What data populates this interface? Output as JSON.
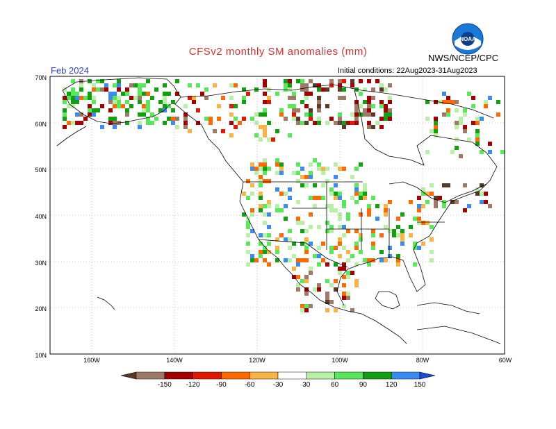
{
  "title": "CFSv2 monthly SM anomalies (mm)",
  "agency": "NWS/NCEP/CPC",
  "valid_month": "Feb 2024",
  "initial_conditions": "Initial conditions: 22Aug2023-31Aug2023",
  "logo_icon": "noaa-logo-icon",
  "lat_labels": [
    "70N",
    "60N",
    "50N",
    "40N",
    "30N",
    "20N",
    "10N"
  ],
  "lon_labels": [
    "160W",
    "140W",
    "120W",
    "100W",
    "80W",
    "60W"
  ],
  "colorbar": {
    "ticks": [
      "-150",
      "-120",
      "-90",
      "-60",
      "-30",
      "30",
      "60",
      "90",
      "120",
      "150"
    ],
    "colors": [
      "#5a3a2a",
      "#a07a68",
      "#a00000",
      "#e01a00",
      "#ff6a00",
      "#f8b446",
      "#ffffff",
      "#b8f0a8",
      "#58e85a",
      "#12a012",
      "#3a8cf0",
      "#1a4fd0"
    ]
  }
}
